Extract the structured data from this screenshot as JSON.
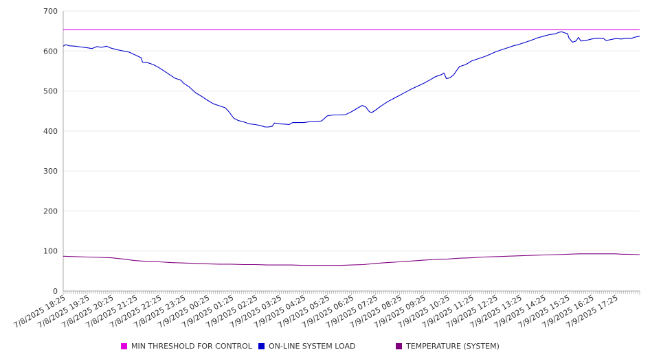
{
  "chart_data": {
    "type": "line",
    "y_ticks": [
      0,
      100,
      200,
      300,
      400,
      500,
      600,
      700
    ],
    "ylim": [
      0,
      700
    ],
    "x_tick_labels": [
      "7/8/2025 18:25",
      "7/8/2025 19:25",
      "7/8/2025 20:25",
      "7/8/2025 21:25",
      "7/8/2025 22:25",
      "7/8/2025 23:25",
      "7/9/2025 00:25",
      "7/9/2025 01:25",
      "7/9/2025 02:25",
      "7/9/2025 03:25",
      "7/9/2025 04:25",
      "7/9/2025 05:25",
      "7/9/2025 06:25",
      "7/9/2025 07:25",
      "7/9/2025 08:25",
      "7/9/2025 09:25",
      "7/9/2025 10:25",
      "7/9/2025 11:25",
      "7/9/2025 12:25",
      "7/9/2025 13:25",
      "7/9/2025 14:25",
      "7/9/2025 15:25",
      "7/9/2025 16:25",
      "7/9/2025 17:25"
    ],
    "grid": true,
    "legend_position": "bottom",
    "series": [
      {
        "name": "MIN THRESHOLD FOR CONTROL",
        "color": "#e000e0",
        "points": [
          [
            0,
            653
          ],
          [
            24,
            653
          ]
        ]
      },
      {
        "name": "ON-LINE SYSTEM LOAD",
        "color": "#0000cc",
        "points": [
          [
            0,
            612
          ],
          [
            0.1,
            616
          ],
          [
            0.25,
            613
          ],
          [
            0.5,
            612
          ],
          [
            0.75,
            610
          ],
          [
            1,
            608
          ],
          [
            1.2,
            606
          ],
          [
            1.4,
            611
          ],
          [
            1.6,
            609
          ],
          [
            1.8,
            612
          ],
          [
            2,
            607
          ],
          [
            2.25,
            603
          ],
          [
            2.5,
            600
          ],
          [
            2.75,
            597
          ],
          [
            3,
            590
          ],
          [
            3.25,
            583
          ],
          [
            3.3,
            572
          ],
          [
            3.5,
            571
          ],
          [
            3.75,
            566
          ],
          [
            4,
            558
          ],
          [
            4.25,
            548
          ],
          [
            4.5,
            538
          ],
          [
            4.65,
            532
          ],
          [
            4.75,
            530
          ],
          [
            4.9,
            527
          ],
          [
            5,
            520
          ],
          [
            5.25,
            510
          ],
          [
            5.5,
            496
          ],
          [
            5.75,
            487
          ],
          [
            6,
            477
          ],
          [
            6.25,
            468
          ],
          [
            6.5,
            463
          ],
          [
            6.75,
            458
          ],
          [
            6.9,
            448
          ],
          [
            7.1,
            432
          ],
          [
            7.3,
            426
          ],
          [
            7.5,
            423
          ],
          [
            7.75,
            418
          ],
          [
            8,
            416
          ],
          [
            8.25,
            413
          ],
          [
            8.4,
            410
          ],
          [
            8.55,
            410
          ],
          [
            8.7,
            412
          ],
          [
            8.8,
            420
          ],
          [
            9,
            418
          ],
          [
            9.25,
            417
          ],
          [
            9.4,
            416
          ],
          [
            9.55,
            421
          ],
          [
            9.75,
            421
          ],
          [
            10,
            421
          ],
          [
            10.25,
            423
          ],
          [
            10.5,
            423
          ],
          [
            10.75,
            425
          ],
          [
            10.85,
            430
          ],
          [
            11,
            438
          ],
          [
            11.25,
            440
          ],
          [
            11.5,
            440
          ],
          [
            11.75,
            441
          ],
          [
            12,
            448
          ],
          [
            12.25,
            457
          ],
          [
            12.45,
            464
          ],
          [
            12.6,
            460
          ],
          [
            12.75,
            448
          ],
          [
            12.85,
            446
          ],
          [
            13,
            452
          ],
          [
            13.25,
            463
          ],
          [
            13.5,
            473
          ],
          [
            13.75,
            481
          ],
          [
            14,
            489
          ],
          [
            14.25,
            497
          ],
          [
            14.5,
            505
          ],
          [
            14.75,
            512
          ],
          [
            15,
            519
          ],
          [
            15.25,
            527
          ],
          [
            15.5,
            536
          ],
          [
            15.75,
            541
          ],
          [
            15.85,
            545
          ],
          [
            15.95,
            531
          ],
          [
            16.1,
            533
          ],
          [
            16.25,
            540
          ],
          [
            16.4,
            553
          ],
          [
            16.5,
            561
          ],
          [
            16.75,
            566
          ],
          [
            17,
            575
          ],
          [
            17.25,
            580
          ],
          [
            17.5,
            585
          ],
          [
            17.75,
            591
          ],
          [
            18,
            598
          ],
          [
            18.25,
            603
          ],
          [
            18.5,
            608
          ],
          [
            18.75,
            613
          ],
          [
            19,
            617
          ],
          [
            19.25,
            622
          ],
          [
            19.5,
            627
          ],
          [
            19.75,
            633
          ],
          [
            20,
            637
          ],
          [
            20.25,
            641
          ],
          [
            20.5,
            643
          ],
          [
            20.65,
            647
          ],
          [
            20.75,
            648
          ],
          [
            20.9,
            645
          ],
          [
            21,
            643
          ],
          [
            21.05,
            633
          ],
          [
            21.2,
            622
          ],
          [
            21.35,
            625
          ],
          [
            21.45,
            634
          ],
          [
            21.55,
            625
          ],
          [
            21.75,
            626
          ],
          [
            22,
            630
          ],
          [
            22.25,
            632
          ],
          [
            22.5,
            631
          ],
          [
            22.6,
            626
          ],
          [
            22.75,
            628
          ],
          [
            23,
            631
          ],
          [
            23.25,
            630
          ],
          [
            23.5,
            632
          ],
          [
            23.65,
            631
          ],
          [
            23.75,
            634
          ],
          [
            24,
            637
          ]
        ]
      },
      {
        "name": "TEMPERATURE (SYSTEM)",
        "color": "#800080",
        "points": [
          [
            0,
            87
          ],
          [
            0.5,
            86
          ],
          [
            1,
            85
          ],
          [
            1.5,
            84
          ],
          [
            2,
            83
          ],
          [
            2.5,
            80
          ],
          [
            3,
            76
          ],
          [
            3.5,
            74
          ],
          [
            4,
            73
          ],
          [
            4.5,
            71
          ],
          [
            5,
            70
          ],
          [
            5.5,
            69
          ],
          [
            6,
            68
          ],
          [
            6.5,
            67
          ],
          [
            7,
            67
          ],
          [
            7.5,
            66
          ],
          [
            8,
            66
          ],
          [
            8.5,
            65
          ],
          [
            9,
            65
          ],
          [
            9.5,
            65
          ],
          [
            10,
            64
          ],
          [
            10.5,
            64
          ],
          [
            11,
            64
          ],
          [
            11.5,
            64
          ],
          [
            12,
            65
          ],
          [
            12.5,
            66
          ],
          [
            13,
            69
          ],
          [
            13.5,
            71
          ],
          [
            14,
            73
          ],
          [
            14.5,
            75
          ],
          [
            15,
            77
          ],
          [
            15.5,
            79
          ],
          [
            16,
            80
          ],
          [
            16.5,
            82
          ],
          [
            17,
            83
          ],
          [
            17.5,
            85
          ],
          [
            18,
            86
          ],
          [
            18.5,
            87
          ],
          [
            19,
            88
          ],
          [
            19.5,
            89
          ],
          [
            20,
            90
          ],
          [
            20.5,
            91
          ],
          [
            21,
            92
          ],
          [
            21.5,
            93
          ],
          [
            22,
            93
          ],
          [
            22.5,
            93
          ],
          [
            23,
            93
          ],
          [
            23.25,
            92
          ],
          [
            23.5,
            92
          ],
          [
            24,
            91
          ]
        ]
      }
    ]
  }
}
